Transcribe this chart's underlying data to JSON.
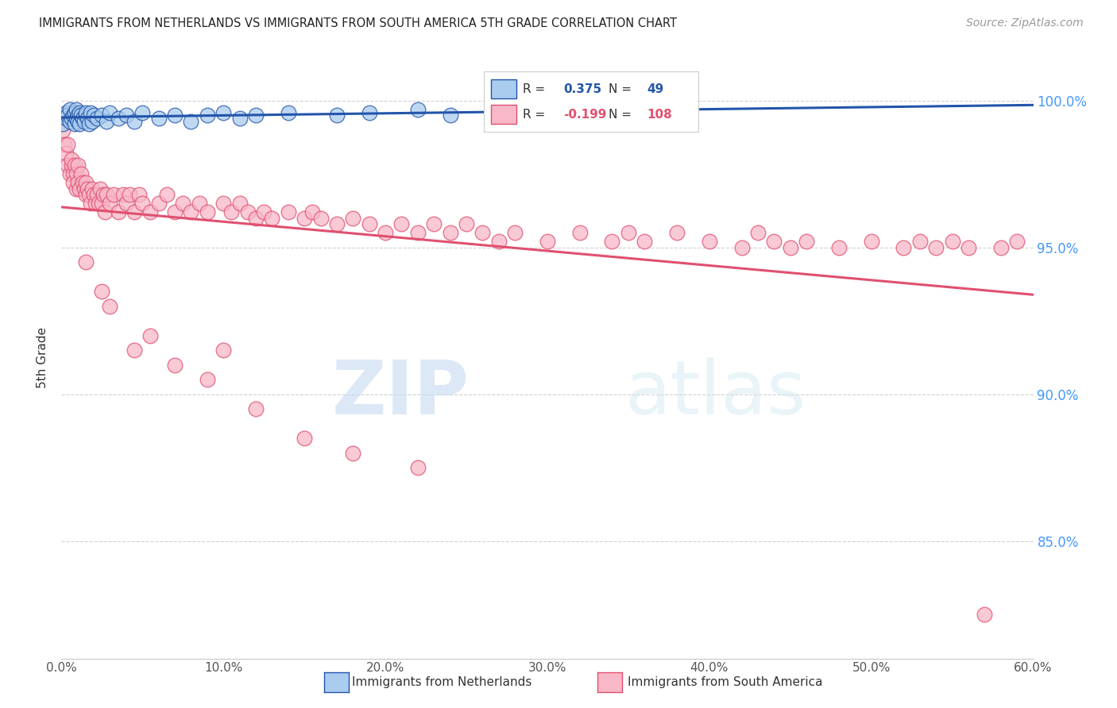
{
  "title": "IMMIGRANTS FROM NETHERLANDS VS IMMIGRANTS FROM SOUTH AMERICA 5TH GRADE CORRELATION CHART",
  "source": "Source: ZipAtlas.com",
  "ylabel_left": "5th Grade",
  "x_tick_labels": [
    "0.0%",
    "10.0%",
    "20.0%",
    "30.0%",
    "40.0%",
    "50.0%",
    "60.0%"
  ],
  "x_tick_values": [
    0.0,
    10.0,
    20.0,
    30.0,
    40.0,
    50.0,
    60.0
  ],
  "y_tick_labels": [
    "100.0%",
    "95.0%",
    "90.0%",
    "85.0%"
  ],
  "y_tick_values": [
    100.0,
    95.0,
    90.0,
    85.0
  ],
  "xlim": [
    0.0,
    60.0
  ],
  "ylim": [
    81.0,
    101.5
  ],
  "netherlands_R": 0.375,
  "netherlands_N": 49,
  "south_america_R": -0.199,
  "south_america_N": 108,
  "netherlands_color": "#aaccee",
  "south_america_color": "#f8b8c8",
  "netherlands_line_color": "#2255aa",
  "south_america_line_color": "#e05070",
  "legend_label_netherlands": "Immigrants from Netherlands",
  "legend_label_south_america": "Immigrants from South America",
  "watermark_zip": "ZIP",
  "watermark_atlas": "atlas",
  "background_color": "#ffffff",
  "grid_color": "#cccccc",
  "title_color": "#222222",
  "axis_label_color": "#333333",
  "right_axis_color": "#4499ff",
  "nl_x": [
    0.1,
    0.2,
    0.3,
    0.3,
    0.4,
    0.5,
    0.5,
    0.6,
    0.7,
    0.8,
    0.8,
    0.9,
    0.9,
    1.0,
    1.0,
    1.1,
    1.1,
    1.2,
    1.3,
    1.4,
    1.5,
    1.5,
    1.6,
    1.7,
    1.8,
    1.9,
    2.0,
    2.2,
    2.5,
    2.8,
    3.0,
    3.5,
    4.0,
    4.5,
    5.0,
    6.0,
    7.0,
    8.0,
    9.0,
    10.0,
    11.0,
    12.0,
    14.0,
    17.0,
    19.0,
    22.0,
    24.0,
    27.0,
    33.0
  ],
  "nl_y": [
    99.2,
    99.5,
    99.4,
    99.6,
    99.5,
    99.3,
    99.7,
    99.4,
    99.5,
    99.6,
    99.2,
    99.4,
    99.7,
    99.5,
    99.3,
    99.6,
    99.2,
    99.5,
    99.4,
    99.3,
    99.5,
    99.6,
    99.4,
    99.2,
    99.6,
    99.3,
    99.5,
    99.4,
    99.5,
    99.3,
    99.6,
    99.4,
    99.5,
    99.3,
    99.6,
    99.4,
    99.5,
    99.3,
    99.5,
    99.6,
    99.4,
    99.5,
    99.6,
    99.5,
    99.6,
    99.7,
    99.5,
    99.6,
    99.7
  ],
  "sa_x": [
    0.1,
    0.2,
    0.3,
    0.4,
    0.4,
    0.5,
    0.6,
    0.6,
    0.7,
    0.7,
    0.8,
    0.9,
    0.9,
    1.0,
    1.0,
    1.1,
    1.2,
    1.3,
    1.4,
    1.5,
    1.5,
    1.6,
    1.7,
    1.8,
    1.9,
    2.0,
    2.1,
    2.2,
    2.3,
    2.4,
    2.5,
    2.6,
    2.7,
    2.8,
    3.0,
    3.2,
    3.5,
    3.8,
    4.0,
    4.2,
    4.5,
    4.8,
    5.0,
    5.5,
    6.0,
    6.5,
    7.0,
    7.5,
    8.0,
    8.5,
    9.0,
    10.0,
    10.5,
    11.0,
    11.5,
    12.0,
    12.5,
    13.0,
    14.0,
    15.0,
    15.5,
    16.0,
    17.0,
    18.0,
    19.0,
    20.0,
    21.0,
    22.0,
    23.0,
    24.0,
    25.0,
    26.0,
    27.0,
    28.0,
    30.0,
    32.0,
    34.0,
    35.0,
    36.0,
    38.0,
    40.0,
    42.0,
    43.0,
    44.0,
    45.0,
    46.0,
    48.0,
    50.0,
    52.0,
    53.0,
    54.0,
    55.0,
    56.0,
    57.0,
    58.0,
    59.0,
    1.5,
    2.5,
    3.0,
    4.5,
    5.5,
    7.0,
    9.0,
    10.0,
    12.0,
    15.0,
    18.0,
    22.0
  ],
  "sa_y": [
    99.0,
    98.5,
    98.2,
    97.8,
    98.5,
    97.5,
    97.8,
    98.0,
    97.5,
    97.2,
    97.8,
    97.0,
    97.5,
    97.2,
    97.8,
    97.0,
    97.5,
    97.2,
    97.0,
    96.8,
    97.2,
    97.0,
    96.8,
    96.5,
    97.0,
    96.8,
    96.5,
    96.8,
    96.5,
    97.0,
    96.5,
    96.8,
    96.2,
    96.8,
    96.5,
    96.8,
    96.2,
    96.8,
    96.5,
    96.8,
    96.2,
    96.8,
    96.5,
    96.2,
    96.5,
    96.8,
    96.2,
    96.5,
    96.2,
    96.5,
    96.2,
    96.5,
    96.2,
    96.5,
    96.2,
    96.0,
    96.2,
    96.0,
    96.2,
    96.0,
    96.2,
    96.0,
    95.8,
    96.0,
    95.8,
    95.5,
    95.8,
    95.5,
    95.8,
    95.5,
    95.8,
    95.5,
    95.2,
    95.5,
    95.2,
    95.5,
    95.2,
    95.5,
    95.2,
    95.5,
    95.2,
    95.0,
    95.5,
    95.2,
    95.0,
    95.2,
    95.0,
    95.2,
    95.0,
    95.2,
    95.0,
    95.2,
    95.0,
    82.5,
    95.0,
    95.2,
    94.5,
    93.5,
    93.0,
    91.5,
    92.0,
    91.0,
    90.5,
    91.5,
    89.5,
    88.5,
    88.0,
    87.5
  ]
}
